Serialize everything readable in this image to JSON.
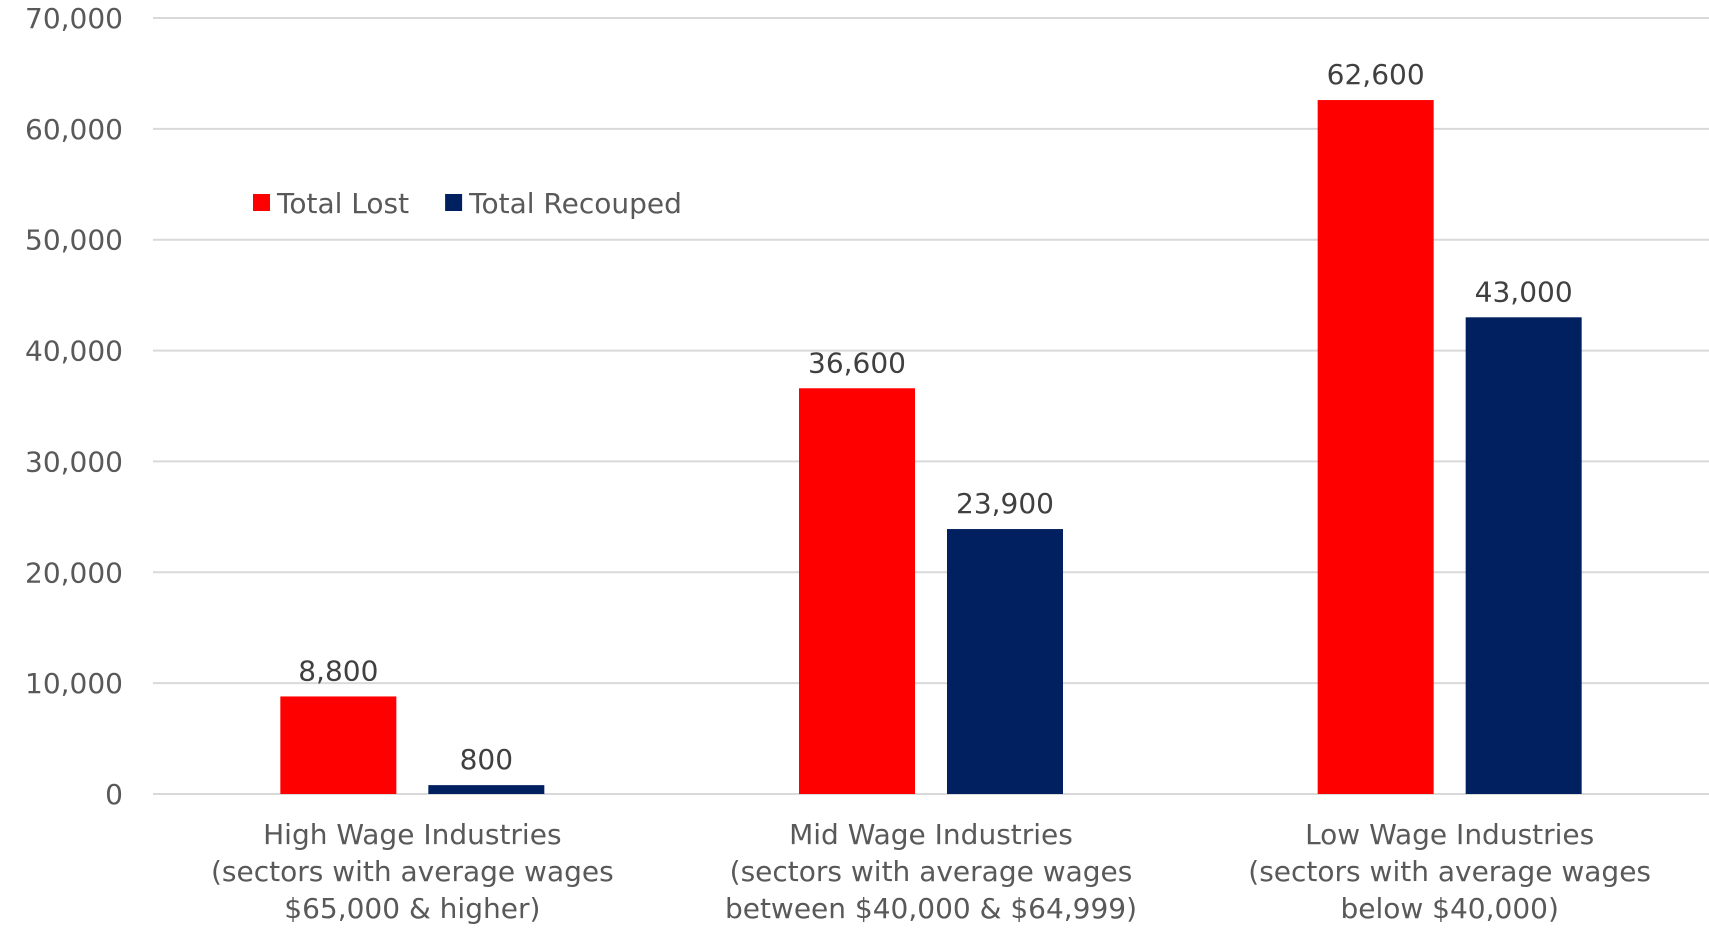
{
  "chart_data": {
    "type": "bar",
    "categories": [
      [
        "High Wage Industries",
        "(sectors with average wages",
        "$65,000 & higher)"
      ],
      [
        "Mid Wage Industries",
        "(sectors with average wages",
        "between $40,000 & $64,999)"
      ],
      [
        "Low Wage Industries",
        "(sectors with average wages",
        "below $40,000)"
      ]
    ],
    "series": [
      {
        "name": "Total Lost",
        "color": "#ff0000",
        "values": [
          8800,
          36600,
          62600
        ],
        "labels": [
          "8,800",
          "36,600",
          "62,600"
        ]
      },
      {
        "name": "Total Recouped",
        "color": "#002060",
        "values": [
          800,
          23900,
          43000
        ],
        "labels": [
          "800",
          "23,900",
          "43,000"
        ]
      }
    ],
    "ylim": [
      0,
      70000
    ],
    "yticks": [
      0,
      10000,
      20000,
      30000,
      40000,
      50000,
      60000,
      70000
    ],
    "ytick_labels": [
      "0",
      "10,000",
      "20,000",
      "30,000",
      "40,000",
      "50,000",
      "60,000",
      "70,000"
    ],
    "grid": true,
    "legend_position": "top-left",
    "title": "",
    "xlabel": "",
    "ylabel": ""
  }
}
